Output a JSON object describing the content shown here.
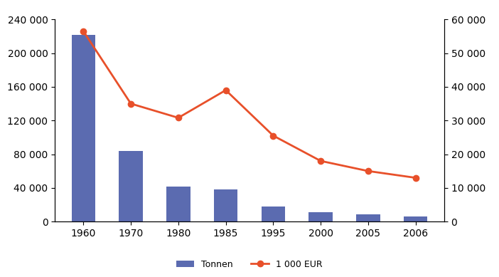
{
  "chart_data": {
    "type": "bar",
    "categories": [
      "1960",
      "1970",
      "1980",
      "1985",
      "1995",
      "2000",
      "2005",
      "2006"
    ],
    "series": [
      {
        "name": "Tonnen",
        "type": "bar",
        "color": "#5b6bb0",
        "values": [
          222000,
          84000,
          42000,
          38000,
          18000,
          11000,
          8500,
          6500
        ]
      },
      {
        "name": "1 000 EUR",
        "type": "line",
        "axis": "y2",
        "color": "#e8502a",
        "marker": "o",
        "line_style": "solid",
        "values": [
          56500,
          35000,
          30800,
          39000,
          25500,
          18000,
          15000,
          13000
        ]
      }
    ],
    "ylim": [
      0,
      240000
    ],
    "yticks": [
      0,
      {
        "value": 40000,
        "label": "40 000"
      },
      {
        "value": 80000,
        "label": "80 000"
      },
      {
        "value": 120000,
        "label": "120 000"
      },
      {
        "value": 160000,
        "label": "160 000"
      },
      {
        "value": 200000,
        "label": "200 000"
      },
      {
        "value": 240000,
        "label": "240 000"
      }
    ],
    "y2lim": [
      0,
      60000
    ],
    "y2ticks": [
      0,
      {
        "value": 10000,
        "label": "10 000"
      },
      {
        "value": 20000,
        "label": "20 000"
      },
      {
        "value": 30000,
        "label": "30 000"
      },
      {
        "value": 40000,
        "label": "40 000"
      },
      {
        "value": 50000,
        "label": "50 000"
      },
      {
        "value": 60000,
        "label": "60 000"
      }
    ],
    "grid": false,
    "legend": "lower center"
  }
}
